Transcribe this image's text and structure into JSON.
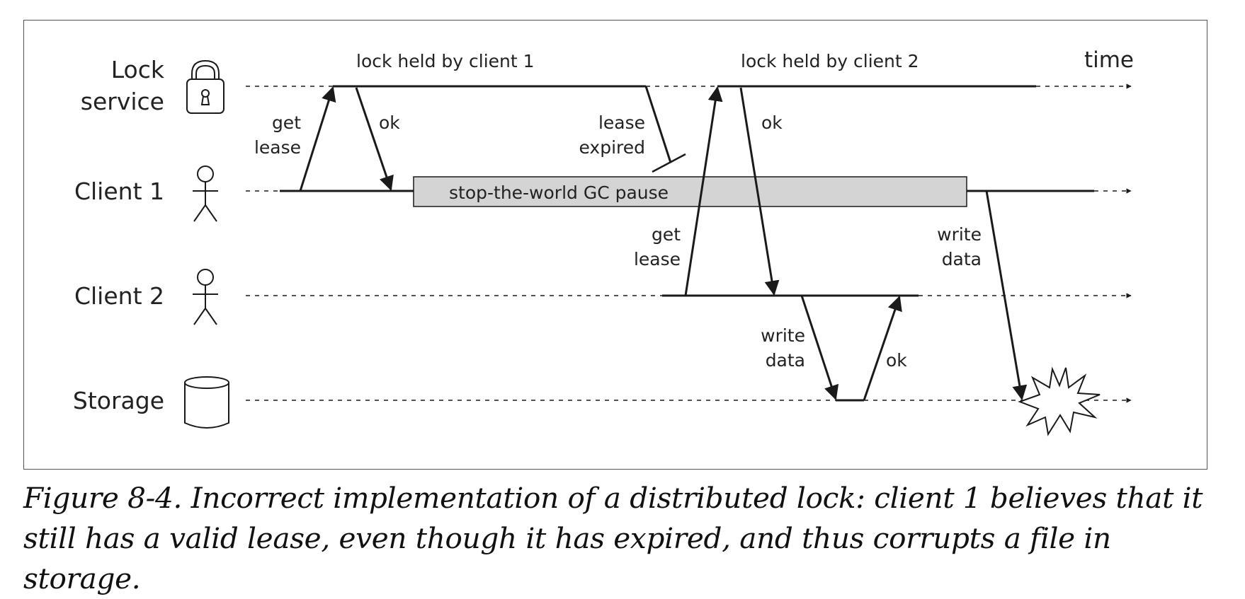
{
  "diagram": {
    "lanes": {
      "lock_service": {
        "line1": "Lock",
        "line2": "service"
      },
      "client1": "Client 1",
      "client2": "Client 2",
      "storage": "Storage"
    },
    "time_label": "time",
    "lock_held_1": "lock held by client 1",
    "lock_held_2": "lock held by client 2",
    "messages": {
      "get_lease_1": {
        "line1": "get",
        "line2": "lease"
      },
      "ok_1": "ok",
      "lease_expired": {
        "line1": "lease",
        "line2": "expired"
      },
      "gc_pause": "stop-the-world GC pause",
      "get_lease_2": {
        "line1": "get",
        "line2": "lease"
      },
      "ok_2": "ok",
      "write_data_2": {
        "line1": "write",
        "line2": "data"
      },
      "ok_3": "ok",
      "write_data_1": {
        "line1": "write",
        "line2": "data"
      }
    },
    "icons": [
      "padlock-icon",
      "person-icon",
      "person-icon",
      "database-icon",
      "explosion-icon"
    ]
  },
  "caption": "Figure 8-4. Incorrect implementation of a distributed lock: client 1 believes that it still has a valid lease, even though it has expired, and thus corrupts a file in storage.",
  "colors": {
    "line": "#1a1a1a",
    "gc_box": "#d4d4d4"
  }
}
